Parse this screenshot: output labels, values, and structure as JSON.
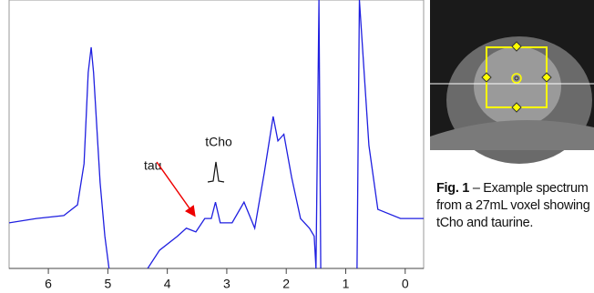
{
  "chart_data": {
    "type": "line",
    "color": "#1f1fe0",
    "x": [
      6.66,
      6.2,
      5.74,
      5.51,
      5.4,
      5.33,
      5.28,
      5.24,
      5.13,
      5.05,
      4.98,
      null,
      4.33,
      4.13,
      3.83,
      3.68,
      3.52,
      3.37,
      3.26,
      3.19,
      3.11,
      2.91,
      2.71,
      2.53,
      2.37,
      2.22,
      2.14,
      2.04,
      1.91,
      1.76,
      1.61,
      1.53,
      1.5,
      1.45,
      1.42,
      null,
      0.81,
      0.77,
      0.61,
      0.46,
      0.08,
      -0.31
    ],
    "values": [
      17,
      18.6,
      19.7,
      23.7,
      39,
      73,
      82.4,
      73,
      32,
      12,
      0,
      null,
      0,
      6.8,
      12,
      15,
      13.6,
      18.6,
      18.6,
      24.7,
      17,
      17,
      24.7,
      15,
      35.6,
      56.6,
      47.5,
      50,
      34,
      18.6,
      15,
      12,
      0,
      100,
      0,
      null,
      0,
      100,
      45.8,
      22,
      18.6,
      18.6
    ],
    "xlim": [
      6.66,
      -0.31
    ],
    "xticks": [
      6,
      5,
      4,
      3,
      2,
      1,
      0
    ],
    "ylim": [
      0,
      100
    ],
    "annotations": [
      "tau",
      "tCho"
    ]
  },
  "caption": {
    "label": "Fig. 1",
    "text": "– Example spectrum from a 27mL voxel showing tCho and taurine."
  }
}
